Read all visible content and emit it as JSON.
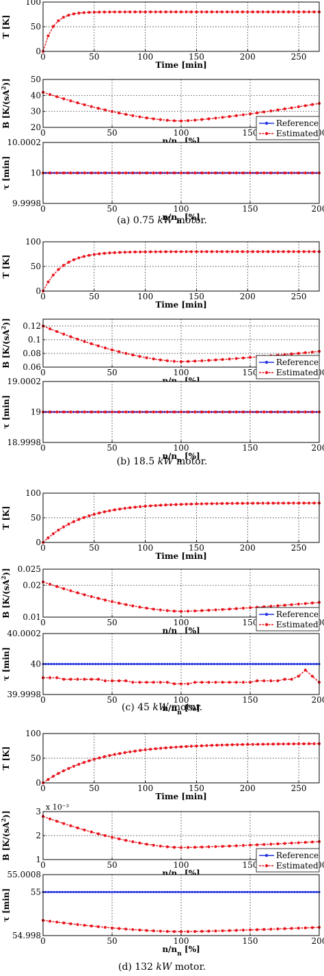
{
  "colors": {
    "reference": "#1f2fe0",
    "estimated": "#e8131b",
    "axis": "#000000",
    "grid": "#000000"
  },
  "captions": [
    {
      "pre": "(a) 0.75 ",
      "unit": "kW",
      "post": " motor."
    },
    {
      "pre": "(b) 18.5 ",
      "unit": "kW",
      "post": " motor."
    },
    {
      "pre": "(c)  45 ",
      "unit": "kW",
      "post": " motor."
    },
    {
      "pre": "(d) 132 ",
      "unit": "kW",
      "post": " motor."
    }
  ],
  "chart_data": [
    {
      "id": "a-T",
      "type": "line",
      "xlabel": "Time [min]",
      "ylabel": "T [K]",
      "xlim": [
        0,
        270
      ],
      "ylim": [
        0,
        100
      ],
      "xticks": [
        0,
        50,
        100,
        150,
        200,
        250
      ],
      "yticks": [
        0,
        50,
        100
      ],
      "grid": true,
      "series": [
        {
          "curve": "exp",
          "T_final": 80,
          "tau": 10,
          "step": 5
        }
      ]
    },
    {
      "id": "a-B",
      "type": "line",
      "xlabel": "n/n_n [%]",
      "ylabel": "B [K/(sA²)]",
      "xlim": [
        0,
        200
      ],
      "ylim": [
        20,
        50
      ],
      "xticks": [
        0,
        50,
        100,
        150,
        200
      ],
      "yticks": [
        20,
        30,
        40,
        50
      ],
      "grid": true,
      "series": [
        {
          "curve": "v",
          "y0": 42,
          "ymin": 24,
          "y200": 35,
          "step": 5
        }
      ]
    },
    {
      "id": "a-tau",
      "type": "line",
      "xlabel": "n/n_n [%]",
      "ylabel": "τ [min]",
      "xlim": [
        0,
        200
      ],
      "ylim": [
        9.9998,
        10.0002
      ],
      "xticks": [
        0,
        50,
        100,
        150,
        200
      ],
      "yticks": [
        9.9998,
        10,
        10.0002
      ],
      "ytick_labels": [
        "9.9998",
        "10",
        "10.0002"
      ],
      "grid": true,
      "legend": [
        "Reference",
        "Estimated"
      ],
      "legend_position": "top-right",
      "series": [
        {
          "name": "Reference",
          "curve": "const",
          "value": 10
        },
        {
          "name": "Estimated",
          "curve": "const",
          "value": 10,
          "step": 5
        }
      ]
    },
    {
      "id": "b-T",
      "type": "line",
      "xlabel": "Time [min]",
      "ylabel": "T [K]",
      "xlim": [
        0,
        270
      ],
      "ylim": [
        0,
        100
      ],
      "xticks": [
        0,
        50,
        100,
        150,
        200,
        250
      ],
      "yticks": [
        0,
        50,
        100
      ],
      "grid": true,
      "series": [
        {
          "curve": "exp",
          "T_final": 80,
          "tau": 19,
          "step": 5
        }
      ]
    },
    {
      "id": "b-B",
      "type": "line",
      "xlabel": "n/n_n [%]",
      "ylabel": "B [K/(sA²)]",
      "xlim": [
        0,
        200
      ],
      "ylim": [
        0.06,
        0.13
      ],
      "xticks": [
        0,
        50,
        100,
        150,
        200
      ],
      "yticks": [
        0.06,
        0.08,
        0.1,
        0.12
      ],
      "grid": true,
      "series": [
        {
          "curve": "v",
          "y0": 0.12,
          "ymin": 0.068,
          "y200": 0.083,
          "step": 5
        }
      ]
    },
    {
      "id": "b-tau",
      "type": "line",
      "xlabel": "n/n_n [%]",
      "ylabel": "τ [min]",
      "xlim": [
        0,
        200
      ],
      "ylim": [
        18.9998,
        19.0002
      ],
      "xticks": [
        0,
        50,
        100,
        150,
        200
      ],
      "yticks": [
        18.9998,
        19,
        19.0002
      ],
      "ytick_labels": [
        "18.9998",
        "19",
        "19.0002"
      ],
      "grid": true,
      "legend": [
        "Reference",
        "Estimated"
      ],
      "legend_position": "top-right",
      "series": [
        {
          "name": "Reference",
          "curve": "const",
          "value": 19
        },
        {
          "name": "Estimated",
          "curve": "const",
          "value": 19,
          "step": 5
        }
      ]
    },
    {
      "id": "c-T",
      "type": "line",
      "xlabel": "Time [min]",
      "ylabel": "T [K]",
      "xlim": [
        0,
        270
      ],
      "ylim": [
        0,
        100
      ],
      "xticks": [
        0,
        50,
        100,
        150,
        200,
        250
      ],
      "yticks": [
        0,
        50,
        100
      ],
      "grid": true,
      "series": [
        {
          "curve": "exp",
          "T_final": 80,
          "tau": 40,
          "step": 5
        }
      ]
    },
    {
      "id": "c-B",
      "type": "line",
      "xlabel": "n/n_n [%]",
      "ylabel": "B [K/(sA²)]",
      "xlim": [
        0,
        200
      ],
      "ylim": [
        0.01,
        0.025
      ],
      "xticks": [
        0,
        50,
        100,
        150,
        200
      ],
      "yticks": [
        0.01,
        0.02,
        0.025
      ],
      "ytick_labels": [
        "0.01",
        "0.02",
        "0.025"
      ],
      "grid": true,
      "series": [
        {
          "curve": "v",
          "y0": 0.021,
          "ymin": 0.0118,
          "y200": 0.0146,
          "step": 5
        }
      ]
    },
    {
      "id": "c-tau",
      "type": "line",
      "xlabel": "n/n_n [%]",
      "ylabel": "τ [min]",
      "xlim": [
        0,
        200
      ],
      "ylim": [
        39.9998,
        40.0002
      ],
      "xticks": [
        0,
        50,
        100,
        150,
        200
      ],
      "yticks": [
        39.9998,
        40,
        40.0002
      ],
      "ytick_labels": [
        "39.9998",
        "40",
        "40.0002"
      ],
      "grid": true,
      "legend": [
        "Reference",
        "Estimated"
      ],
      "legend_position": "top-right",
      "series": [
        {
          "name": "Reference",
          "curve": "const",
          "value": 40
        },
        {
          "name": "Estimated",
          "curve": "points",
          "x": [
            0,
            5,
            10,
            15,
            20,
            25,
            30,
            35,
            40,
            45,
            50,
            55,
            60,
            65,
            70,
            75,
            80,
            85,
            90,
            95,
            100,
            105,
            110,
            115,
            120,
            125,
            130,
            135,
            140,
            145,
            150,
            155,
            160,
            165,
            170,
            175,
            180,
            185,
            190,
            195,
            200
          ],
          "y": [
            39.99991,
            39.99991,
            39.99991,
            39.9999,
            39.9999,
            39.9999,
            39.9999,
            39.9999,
            39.9999,
            39.99989,
            39.99989,
            39.99989,
            39.99989,
            39.99988,
            39.99988,
            39.99988,
            39.99988,
            39.99988,
            39.99988,
            39.99987,
            39.99987,
            39.99987,
            39.99988,
            39.99988,
            39.99988,
            39.99988,
            39.99988,
            39.99988,
            39.99988,
            39.99988,
            39.99988,
            39.99989,
            39.99989,
            39.99989,
            39.99989,
            39.9999,
            39.9999,
            39.99992,
            39.99996,
            39.99992,
            39.99988
          ]
        }
      ]
    },
    {
      "id": "d-T",
      "type": "line",
      "xlabel": "Time [min]",
      "ylabel": "T [K]",
      "xlim": [
        0,
        270
      ],
      "ylim": [
        0,
        100
      ],
      "xticks": [
        0,
        50,
        100,
        150,
        200,
        250
      ],
      "yticks": [
        0,
        50,
        100
      ],
      "grid": true,
      "series": [
        {
          "curve": "exp",
          "T_final": 80,
          "tau": 55,
          "step": 5
        }
      ]
    },
    {
      "id": "d-B",
      "type": "line",
      "xlabel": "n/n_n [%]",
      "ylabel": "B [K/(sA²)]",
      "xlim": [
        0,
        200
      ],
      "ylim": [
        1,
        3
      ],
      "xticks": [
        0,
        50,
        100,
        150,
        200
      ],
      "yticks": [
        1,
        2,
        3
      ],
      "grid": true,
      "exponent_label": "x 10⁻³",
      "series": [
        {
          "curve": "v",
          "y0": 2.8,
          "ymin": 1.5,
          "y200": 1.75,
          "step": 5
        }
      ]
    },
    {
      "id": "d-tau",
      "type": "line",
      "xlabel": "n/n_n [%]",
      "ylabel": "τ [min]",
      "xlim": [
        0,
        200
      ],
      "ylim": [
        54.998,
        55.0008
      ],
      "xticks": [
        0,
        50,
        100,
        150,
        200
      ],
      "yticks": [
        54.998,
        55,
        55.0008
      ],
      "ytick_labels": [
        "54.998",
        "55",
        "55.0008"
      ],
      "grid": true,
      "legend": [
        "Reference",
        "Estimated"
      ],
      "legend_position": "top-right",
      "series": [
        {
          "name": "Reference",
          "curve": "const",
          "value": 55
        },
        {
          "name": "Estimated",
          "curve": "v",
          "y0": 54.9987,
          "ymin": 54.99818,
          "y200": 54.99838,
          "step": 5
        }
      ]
    }
  ]
}
